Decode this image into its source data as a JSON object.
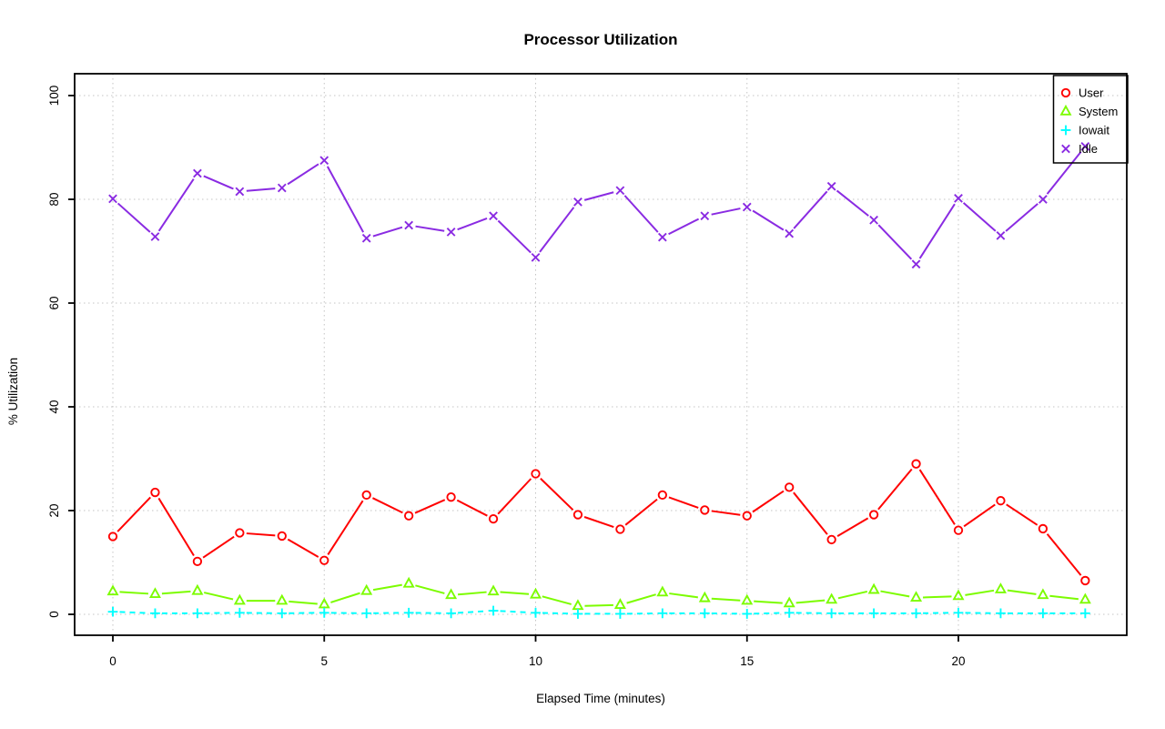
{
  "page": {
    "background": "#ffffff",
    "grid_color": "#c4c4c4",
    "axis_color": "#000000"
  },
  "chart_data": {
    "type": "line",
    "title": "Processor Utilization",
    "xlabel": "Elapsed Time (minutes)",
    "ylabel": "% Utilization",
    "x": [
      0,
      1,
      2,
      3,
      4,
      5,
      6,
      7,
      8,
      9,
      10,
      11,
      12,
      13,
      14,
      15,
      16,
      17,
      18,
      19,
      20,
      21,
      22,
      23
    ],
    "x_ticks": [
      0,
      5,
      10,
      15,
      20
    ],
    "y_ticks": [
      0,
      20,
      40,
      60,
      80,
      100
    ],
    "xlim": [
      0,
      23
    ],
    "ylim": [
      0,
      100
    ],
    "grid": true,
    "legend_position": "top-right",
    "series": [
      {
        "name": "User",
        "color": "#ff0000",
        "marker": "circle",
        "line": "solid",
        "values": [
          15,
          23.5,
          10.2,
          15.7,
          15.1,
          10.4,
          23,
          19,
          22.6,
          18.4,
          27.1,
          19.2,
          16.4,
          23,
          20.1,
          19,
          24.5,
          14.4,
          19.2,
          29,
          16.2,
          21.9,
          16.5,
          6.5
        ]
      },
      {
        "name": "System",
        "color": "#7cfc00",
        "marker": "triangle",
        "line": "solid",
        "values": [
          4.4,
          3.9,
          4.5,
          2.6,
          2.6,
          1.9,
          4.5,
          5.9,
          3.7,
          4.4,
          3.8,
          1.6,
          1.8,
          4.2,
          3.1,
          2.6,
          2.1,
          2.8,
          4.7,
          3.2,
          3.5,
          4.8,
          3.7,
          2.8
        ]
      },
      {
        "name": "Iowait",
        "color": "#00ffff",
        "marker": "plus",
        "line": "dashed",
        "values": [
          0.5,
          0.2,
          0.2,
          0.3,
          0.2,
          0.3,
          0.2,
          0.3,
          0.2,
          0.7,
          0.3,
          0.1,
          0.1,
          0.2,
          0.2,
          0.1,
          0.3,
          0.2,
          0.2,
          0.2,
          0.3,
          0.2,
          0.2,
          0.2
        ]
      },
      {
        "name": "Idle",
        "color": "#8a2be2",
        "marker": "x",
        "line": "solid",
        "values": [
          80.1,
          72.8,
          85,
          81.5,
          82.2,
          87.5,
          72.5,
          75,
          73.7,
          76.8,
          68.8,
          79.5,
          81.7,
          72.7,
          76.8,
          78.5,
          73.4,
          82.5,
          76,
          67.5,
          80.2,
          73,
          80,
          90.2
        ]
      }
    ]
  }
}
